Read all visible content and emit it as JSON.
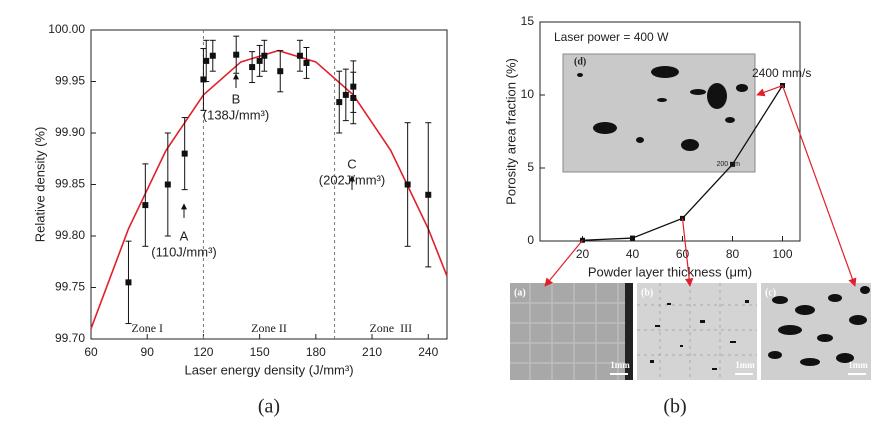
{
  "chart_data": [
    {
      "type": "scatter",
      "x_label": "Laser energy density (J/mm³)",
      "y_label": "Relative density (%)",
      "xlim": [
        60,
        250
      ],
      "ylim": [
        99.7,
        100.0
      ],
      "xticks": [
        60,
        90,
        120,
        150,
        180,
        210,
        240
      ],
      "yticks": [
        {
          "value": 99.7,
          "label": "99.70"
        },
        {
          "value": 99.75,
          "label": "99.75"
        },
        {
          "value": 99.8,
          "label": "99.80"
        },
        {
          "value": 99.85,
          "label": "99.85"
        },
        {
          "value": 99.9,
          "label": "99.90"
        },
        {
          "value": 99.95,
          "label": "99.95"
        },
        {
          "value": 100.0,
          "label": "100.00"
        }
      ],
      "series": [
        {
          "color": "#111111",
          "x": [
            80,
            89,
            101,
            110,
            120,
            121.5,
            125,
            137.5,
            146,
            150,
            152.5,
            161,
            171.5,
            175,
            192.5,
            196,
            200,
            200,
            229,
            240
          ],
          "values": [
            99.755,
            99.83,
            99.85,
            99.88,
            99.952,
            99.97,
            99.975,
            99.976,
            99.964,
            99.97,
            99.975,
            99.96,
            99.975,
            99.968,
            99.93,
            99.937,
            99.945,
            99.934,
            99.85,
            99.84
          ],
          "errors": [
            0.04,
            0.04,
            0.05,
            0.035,
            0.03,
            0.02,
            0.015,
            0.018,
            0.015,
            0.015,
            0.015,
            0.02,
            0.015,
            0.015,
            0.03,
            0.025,
            0.025,
            0.025,
            0.06,
            0.07
          ]
        }
      ],
      "fit": {
        "color": "#e0202a",
        "x": [
          60,
          80,
          100,
          120,
          140,
          160,
          180,
          200,
          220,
          240,
          250
        ],
        "values": [
          99.71,
          99.807,
          99.883,
          99.937,
          99.969,
          99.98,
          99.969,
          99.937,
          99.883,
          99.807,
          99.761
        ]
      },
      "zones": {
        "labels": [
          "Zone I",
          "Zone II",
          "Zone  III"
        ],
        "bounds": [
          120,
          190
        ]
      },
      "annotations": [
        {
          "letter": "A",
          "text": "(110J/mm³)"
        },
        {
          "letter": "B",
          "text": "(138J/mm³)"
        },
        {
          "letter": "C",
          "text": "(202J/mm³)"
        }
      ],
      "caption": "(a)"
    },
    {
      "type": "line",
      "x_label": "Powder layer thickness (μm)",
      "y_label": "Porosity area fraction  (%)",
      "xlim": [
        3,
        107
      ],
      "ylim": [
        0,
        15
      ],
      "xticks": [
        20,
        40,
        60,
        80,
        100
      ],
      "yticks": [
        0,
        5,
        10,
        15
      ],
      "x": [
        20,
        40,
        60,
        80,
        100
      ],
      "values": [
        0.05,
        0.2,
        1.55,
        5.25,
        10.65
      ],
      "color": "#111111",
      "annotations": [
        "Laser power = 400 W",
        "2400 mm/s"
      ],
      "inset": {
        "label": "(d)",
        "scale": "200 μm"
      },
      "images": [
        {
          "label": "(a)",
          "scale": "1mm"
        },
        {
          "label": "(b)",
          "scale": "1mm"
        },
        {
          "label": "(c)",
          "scale": "1mm"
        }
      ],
      "caption": "(b)"
    }
  ]
}
